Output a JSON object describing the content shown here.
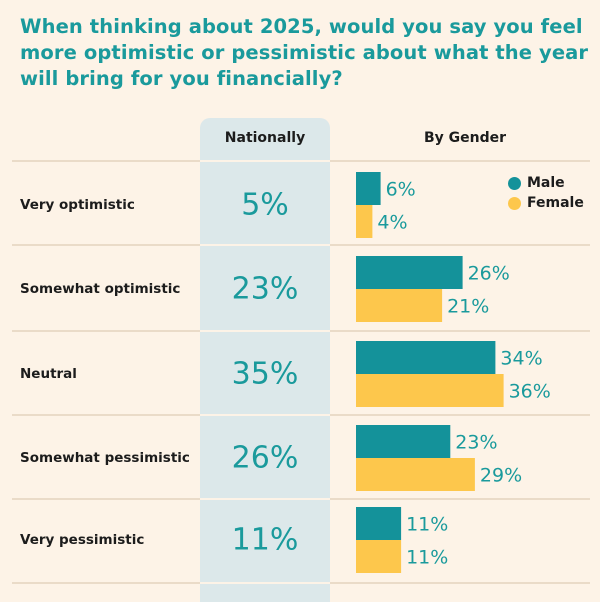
{
  "title": "When thinking about 2025, would you say you feel more optimistic or pessimistic about what the year will bring for you financially?",
  "colors": {
    "male": "#14929a",
    "female": "#fdc74c",
    "accent": "#1a9a9c"
  },
  "chart_data": {
    "type": "bar",
    "column_headers": {
      "nationally": "Nationally",
      "gender": "By Gender"
    },
    "categories": [
      "Very optimistic",
      "Somewhat optimistic",
      "Neutral",
      "Somewhat pessimistic",
      "Very pessimistic"
    ],
    "nationally": [
      "5%",
      "23%",
      "35%",
      "26%",
      "11%"
    ],
    "nationally_values": [
      5,
      23,
      35,
      26,
      11
    ],
    "series": [
      {
        "name": "Male",
        "values": [
          6,
          26,
          34,
          23,
          11
        ],
        "labels": [
          "6%",
          "26%",
          "34%",
          "23%",
          "11%"
        ]
      },
      {
        "name": "Female",
        "values": [
          4,
          21,
          36,
          29,
          11
        ],
        "labels": [
          "4%",
          "21%",
          "36%",
          "29%",
          "11%"
        ]
      }
    ],
    "legend_position": "top-right"
  }
}
